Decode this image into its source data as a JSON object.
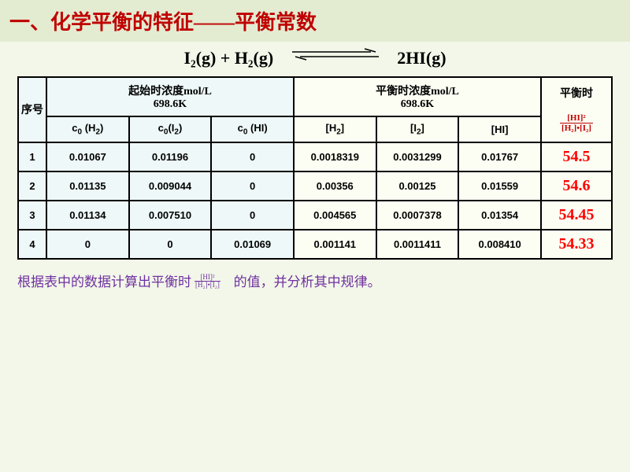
{
  "colors": {
    "page_bg": "#f2f7e9",
    "title_bg": "#e3ecd1",
    "title_color": "#c00000",
    "equation_color": "#000000",
    "table_bg_left": "#eef8f8",
    "table_bg_right": "#fdfef3",
    "border": "#000000",
    "kc_header": "#c00000",
    "kc_value": "#ff0000",
    "footer_color": "#7030a0"
  },
  "title": "一、化学平衡的特征——平衡常数",
  "equation": {
    "lhs": "I₂(g)  +  H₂(g)",
    "rhs": "2HI(g)"
  },
  "table": {
    "headers": {
      "index": "序号",
      "initial_group": "起始时浓度mol/L",
      "initial_temp": "698.6K",
      "equil_group": "平衡时浓度mol/L",
      "equil_temp": "698.6K",
      "kc_label": "平衡时",
      "c0_h2": "c₀ (H₂)",
      "c0_i2": "c₀(I₂)",
      "c0_hi": "c₀ (HI)",
      "eq_h2": "[H₂]",
      "eq_i2": "[I₂]",
      "eq_hi": "[HI]"
    },
    "rows": [
      {
        "n": "1",
        "c0h2": "0.01067",
        "c0i2": "0.01196",
        "c0hi": "0",
        "h2": "0.0018319",
        "i2": "0.0031299",
        "hi": "0.01767",
        "kc": "54.5"
      },
      {
        "n": "2",
        "c0h2": "0.01135",
        "c0i2": "0.009044",
        "c0hi": "0",
        "h2": "0.00356",
        "i2": "0.00125",
        "hi": "0.01559",
        "kc": "54.6"
      },
      {
        "n": "3",
        "c0h2": "0.01134",
        "c0i2": "0.007510",
        "c0hi": "0",
        "h2": "0.004565",
        "i2": "0.0007378",
        "hi": "0.01354",
        "kc": "54.45"
      },
      {
        "n": "4",
        "c0h2": "0",
        "c0i2": "0",
        "c0hi": "0.01069",
        "h2": "0.001141",
        "i2": "0.0011411",
        "hi": "0.008410",
        "kc": "54.33"
      }
    ]
  },
  "kc_formula": {
    "numerator": "[HI]²",
    "denominator": "[H₂]•[I₂]"
  },
  "footer": {
    "part1": "根据表中的数据计算出平衡时",
    "part2": "的值，并分析其中规律。"
  }
}
